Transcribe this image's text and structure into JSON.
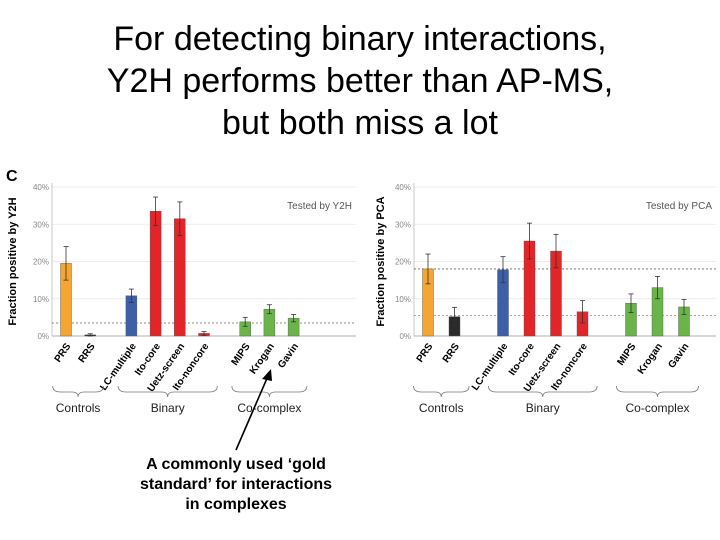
{
  "slide": {
    "title_lines": [
      "For detecting binary interactions,",
      "Y2H performs better than AP-MS,",
      "but both miss a lot"
    ],
    "panel_letter": "C",
    "annotation_lines": [
      "A commonly used ‘gold",
      "standard’ for interactions",
      "in complexes"
    ]
  },
  "chart_data": [
    {
      "type": "bar",
      "label": "Tested by Y2H",
      "ylabel": "Fraction positive by Y2H",
      "ylim": [
        0,
        40
      ],
      "yticks": [
        "0%",
        "10%",
        "20%",
        "30%",
        "40%"
      ],
      "categories": [
        "PRS",
        "RRS",
        "LC-multiple",
        "Ito-core",
        "Uetz-screen",
        "Ito-noncore",
        "MIPS",
        "Krogan",
        "Gavin"
      ],
      "values": [
        19.5,
        0.3,
        10.8,
        33.5,
        31.5,
        0.7,
        3.8,
        7.2,
        4.8
      ],
      "errors": [
        4.5,
        0.3,
        1.8,
        3.8,
        4.5,
        0.5,
        1.2,
        1.2,
        1.0
      ],
      "colors": [
        "#f5a531",
        "#2a2a2a",
        "#3d5fa8",
        "#e32428",
        "#e32428",
        "#e32428",
        "#6bb44a",
        "#6bb44a",
        "#6bb44a"
      ],
      "reference_line": 3.5,
      "groups": [
        {
          "label": "Controls",
          "start": 0,
          "end": 1
        },
        {
          "label": "Binary",
          "start": 2,
          "end": 5
        },
        {
          "label": "Co-complex",
          "start": 6,
          "end": 8
        }
      ],
      "grid": true
    },
    {
      "type": "bar",
      "label": "Tested by PCA",
      "ylabel": "Fraction positive by PCA",
      "ylim": [
        0,
        40
      ],
      "yticks": [
        "0%",
        "10%",
        "20%",
        "30%",
        "40%"
      ],
      "categories": [
        "PRS",
        "RRS",
        "LC-multiple",
        "Ito-core",
        "Uetz-screen",
        "Ito-noncore",
        "MIPS",
        "Krogan",
        "Gavin"
      ],
      "values": [
        18,
        5.2,
        17.8,
        25.5,
        22.8,
        6.5,
        8.8,
        13,
        7.8
      ],
      "errors": [
        4,
        2.5,
        3.5,
        4.8,
        4.5,
        3,
        2.5,
        3,
        2
      ],
      "colors": [
        "#f5a531",
        "#2a2a2a",
        "#3d5fa8",
        "#e32428",
        "#e32428",
        "#e32428",
        "#6bb44a",
        "#6bb44a",
        "#6bb44a"
      ],
      "reference_line": 18,
      "reference_line_2": 5.5,
      "groups": [
        {
          "label": "Controls",
          "start": 0,
          "end": 1
        },
        {
          "label": "Binary",
          "start": 2,
          "end": 5
        },
        {
          "label": "Co-complex",
          "start": 6,
          "end": 8
        }
      ],
      "grid": true
    }
  ]
}
